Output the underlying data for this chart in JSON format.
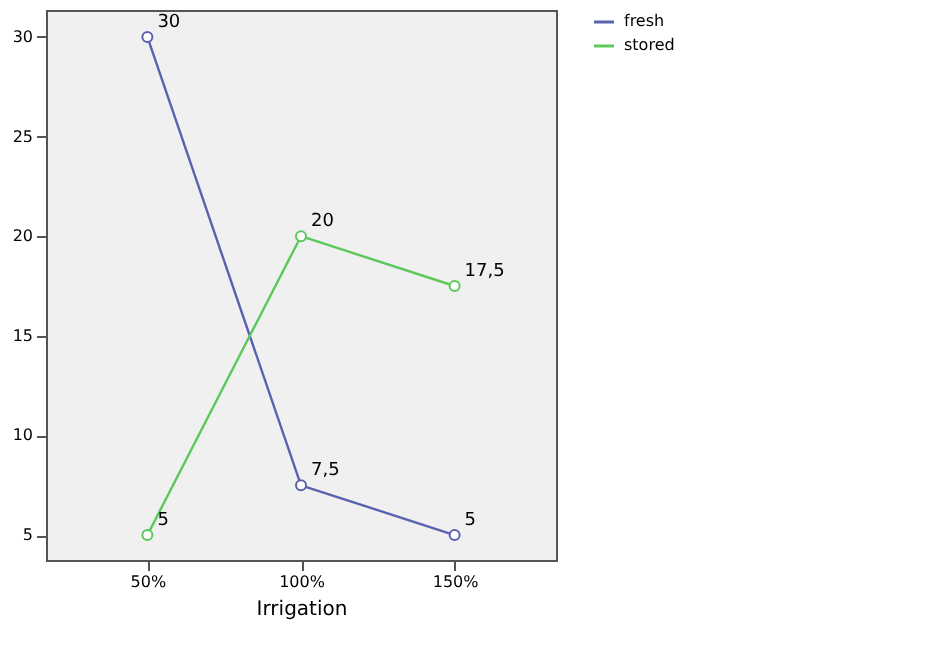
{
  "chart_data": {
    "type": "line",
    "xlabel": "Irrigation",
    "categories": [
      "50%",
      "100%",
      "150%"
    ],
    "series": [
      {
        "name": "fresh",
        "color": "#5a62b0",
        "values": [
          30,
          7.5,
          5
        ],
        "value_labels": [
          "30",
          "7,5",
          "5"
        ]
      },
      {
        "name": "stored",
        "color": "#5cc85c",
        "values": [
          5,
          20,
          17.5
        ],
        "value_labels": [
          "5",
          "20",
          "17,5"
        ]
      }
    ],
    "ylim": [
      3.75,
      31.35
    ],
    "yticks": [
      5,
      10,
      15,
      20,
      25,
      30
    ],
    "grid": false,
    "legend": "top right",
    "marker": "circle",
    "line_style": "solid"
  }
}
